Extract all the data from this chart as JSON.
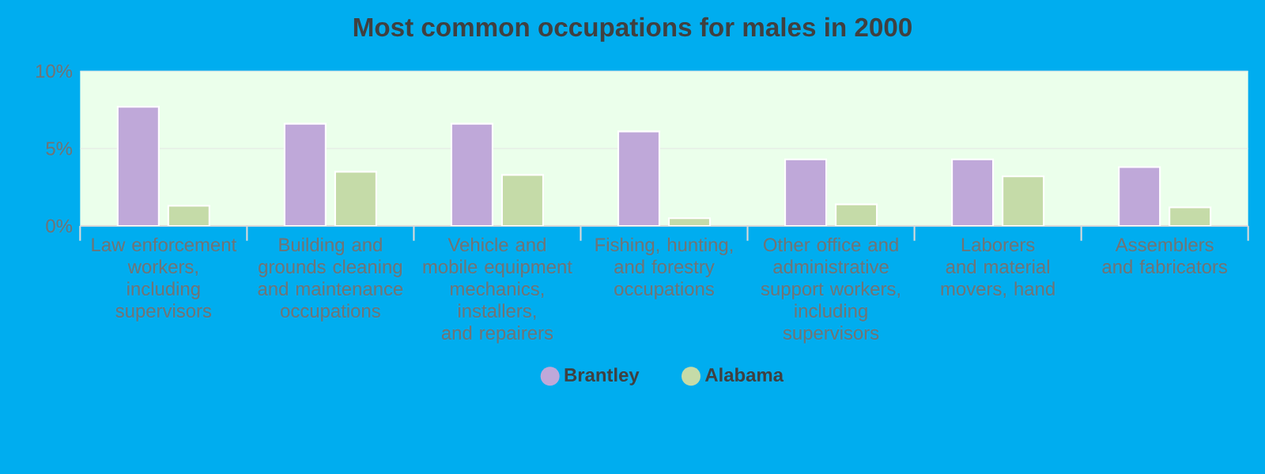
{
  "chart_data": {
    "type": "bar",
    "title": "Most common occupations for males in 2000",
    "categories": [
      "Law enforcement workers, including supervisors",
      "Building and grounds cleaning and maintenance occupations",
      "Vehicle and mobile equipment mechanics, installers, and repairers",
      "Fishing, hunting, and forestry occupations",
      "Other office and administrative support workers, including supervisors",
      "Laborers and material movers, hand",
      "Assemblers and fabricators"
    ],
    "series": [
      {
        "name": "Brantley",
        "color": "#bfa8d9",
        "values": [
          7.7,
          6.6,
          6.6,
          6.1,
          4.3,
          4.3,
          3.8
        ]
      },
      {
        "name": "Alabama",
        "color": "#c5dba8",
        "values": [
          1.3,
          3.5,
          3.3,
          0.5,
          1.4,
          3.2,
          1.2
        ]
      }
    ],
    "ylim": [
      0,
      10
    ],
    "yticks": [
      {
        "value": 0,
        "label": "0%"
      },
      {
        "value": 5,
        "label": "5%"
      },
      {
        "value": 10,
        "label": "10%"
      }
    ],
    "grid": "y",
    "legend": "bottom"
  }
}
